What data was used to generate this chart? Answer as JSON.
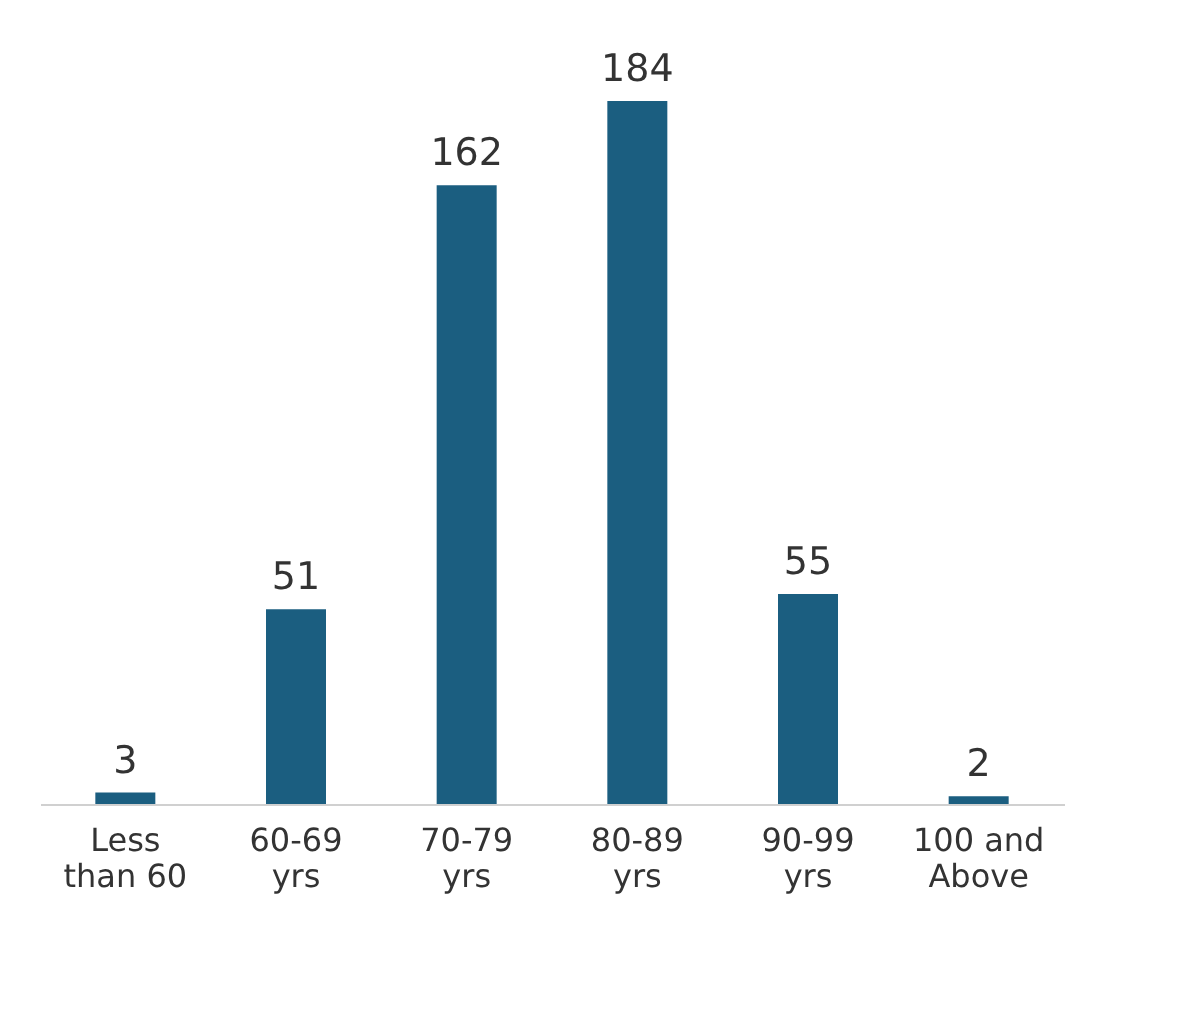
{
  "chart_data": {
    "type": "bar",
    "categories": [
      "Less\nthan 60",
      "60-69\nyrs",
      "70-79\nyrs",
      "80-89\nyrs",
      "90-99\nyrs",
      "100 and\nAbove"
    ],
    "values": [
      3,
      51,
      162,
      184,
      55,
      2
    ],
    "color": "#1b5e80",
    "data_labels": true
  }
}
